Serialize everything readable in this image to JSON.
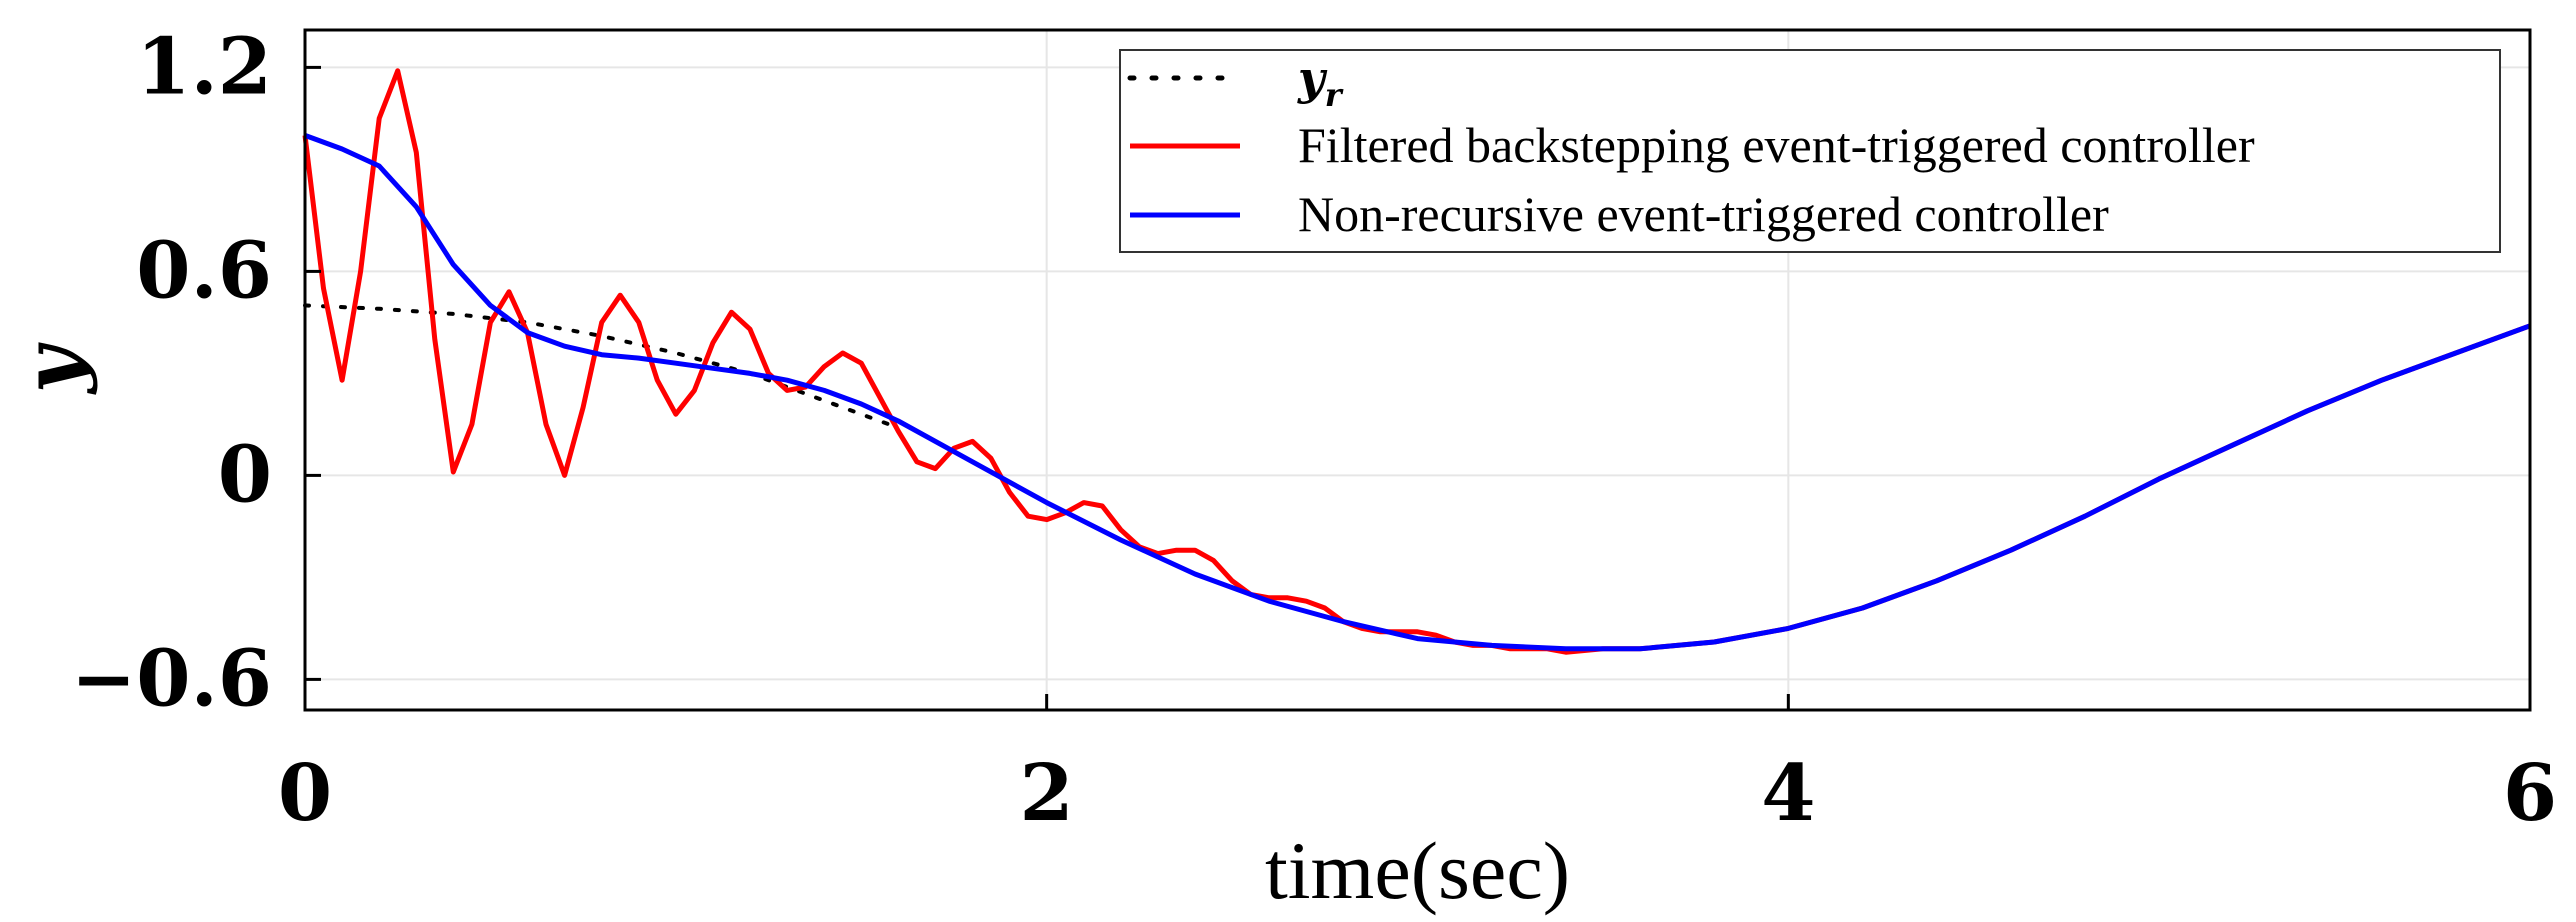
{
  "chart_data": {
    "type": "line",
    "title": "",
    "xlabel": "time(sec)",
    "ylabel": "y",
    "xlim": [
      0,
      6
    ],
    "ylim": [
      -0.69,
      1.31
    ],
    "xticks": [
      0,
      2,
      4,
      6
    ],
    "xtick_labels": [
      "0",
      "2",
      "4",
      "6"
    ],
    "yticks": [
      -0.6,
      0,
      0.6,
      1.2
    ],
    "ytick_labels": [
      "−0.6",
      "0",
      "0.6",
      "1.2"
    ],
    "grid": true,
    "legend_position": "top-right",
    "series": [
      {
        "name": "y_r",
        "legend_symbol": "y",
        "legend_subscript": "r",
        "color": "#000000",
        "style": "dotted",
        "x": [
          0,
          0.2,
          0.4,
          0.6,
          0.8,
          1.0,
          1.2,
          1.4,
          1.6
        ],
        "y": [
          0.5,
          0.49,
          0.475,
          0.45,
          0.41,
          0.36,
          0.3,
          0.22,
          0.14
        ]
      },
      {
        "name": "Filtered backstepping event-triggered controller",
        "color": "#ff0000",
        "style": "solid",
        "x": [
          0,
          0.05,
          0.1,
          0.15,
          0.2,
          0.25,
          0.3,
          0.35,
          0.4,
          0.45,
          0.5,
          0.55,
          0.6,
          0.65,
          0.7,
          0.75,
          0.8,
          0.85,
          0.9,
          0.95,
          1.0,
          1.05,
          1.1,
          1.15,
          1.2,
          1.25,
          1.3,
          1.35,
          1.4,
          1.45,
          1.5,
          1.55,
          1.6,
          1.65,
          1.7,
          1.75,
          1.8,
          1.85,
          1.9,
          1.95,
          2.0,
          2.05,
          2.1,
          2.15,
          2.2,
          2.25,
          2.3,
          2.35,
          2.4,
          2.45,
          2.5,
          2.55,
          2.6,
          2.65,
          2.7,
          2.75,
          2.8,
          2.85,
          2.9,
          2.95,
          3.0,
          3.05,
          3.1,
          3.15,
          3.2,
          3.25,
          3.3,
          3.35,
          3.4,
          3.5,
          3.6,
          3.7,
          3.8,
          3.9,
          4.0,
          4.2,
          4.4,
          4.6,
          4.8,
          5.0,
          5.2,
          5.4,
          5.6,
          5.8,
          6.0
        ],
        "y": [
          1.0,
          0.55,
          0.28,
          0.6,
          1.05,
          1.19,
          0.95,
          0.4,
          0.01,
          0.15,
          0.45,
          0.54,
          0.42,
          0.15,
          0.0,
          0.2,
          0.45,
          0.53,
          0.45,
          0.28,
          0.18,
          0.25,
          0.39,
          0.48,
          0.43,
          0.3,
          0.25,
          0.26,
          0.32,
          0.36,
          0.33,
          0.23,
          0.13,
          0.04,
          0.02,
          0.08,
          0.1,
          0.05,
          -0.05,
          -0.12,
          -0.13,
          -0.11,
          -0.08,
          -0.09,
          -0.16,
          -0.21,
          -0.23,
          -0.22,
          -0.22,
          -0.25,
          -0.31,
          -0.35,
          -0.36,
          -0.36,
          -0.37,
          -0.39,
          -0.43,
          -0.45,
          -0.46,
          -0.46,
          -0.46,
          -0.47,
          -0.49,
          -0.5,
          -0.5,
          -0.51,
          -0.51,
          -0.51,
          -0.52,
          -0.51,
          -0.51,
          -0.5,
          -0.49,
          -0.47,
          -0.45,
          -0.39,
          -0.31,
          -0.22,
          -0.12,
          -0.01,
          0.09,
          0.19,
          0.28,
          0.36,
          0.44
        ]
      },
      {
        "name": "Non-recursive event-triggered controller",
        "color": "#0000ff",
        "style": "solid",
        "x": [
          0,
          0.1,
          0.2,
          0.3,
          0.4,
          0.5,
          0.6,
          0.7,
          0.8,
          0.9,
          1.0,
          1.1,
          1.2,
          1.3,
          1.4,
          1.5,
          1.6,
          1.8,
          2.0,
          2.2,
          2.4,
          2.6,
          2.8,
          3.0,
          3.2,
          3.4,
          3.6,
          3.8,
          4.0,
          4.2,
          4.4,
          4.6,
          4.8,
          5.0,
          5.2,
          5.4,
          5.6,
          5.8,
          6.0
        ],
        "y": [
          1.0,
          0.96,
          0.91,
          0.79,
          0.62,
          0.5,
          0.42,
          0.38,
          0.355,
          0.345,
          0.33,
          0.315,
          0.3,
          0.28,
          0.25,
          0.21,
          0.16,
          0.04,
          -0.08,
          -0.19,
          -0.29,
          -0.37,
          -0.43,
          -0.48,
          -0.5,
          -0.51,
          -0.51,
          -0.49,
          -0.45,
          -0.39,
          -0.31,
          -0.22,
          -0.12,
          -0.01,
          0.09,
          0.19,
          0.28,
          0.36,
          0.44
        ]
      }
    ]
  }
}
